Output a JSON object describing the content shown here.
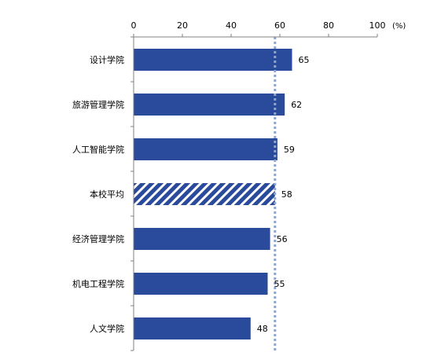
{
  "chart_data": {
    "type": "bar",
    "orientation": "horizontal",
    "categories": [
      "设计学院",
      "旅游管理学院",
      "人工智能学院",
      "本校平均",
      "经济管理学院",
      "机电工程学院",
      "人文学院"
    ],
    "values": [
      65,
      62,
      59,
      58,
      56,
      55,
      48
    ],
    "highlight_category": "本校平均",
    "reference_line": 58,
    "xlim": [
      0,
      100
    ],
    "xticks": [
      0,
      20,
      40,
      60,
      80,
      100
    ],
    "x_unit": "(%)",
    "x_axis_position": "top",
    "grid": false,
    "title": "",
    "xlabel": "",
    "ylabel": ""
  },
  "colors": {
    "bar": "#2a4b9b",
    "bar_hatch_stripe": "#ffffff",
    "reference_line": "#8ea6cc",
    "axis": "#808080"
  }
}
